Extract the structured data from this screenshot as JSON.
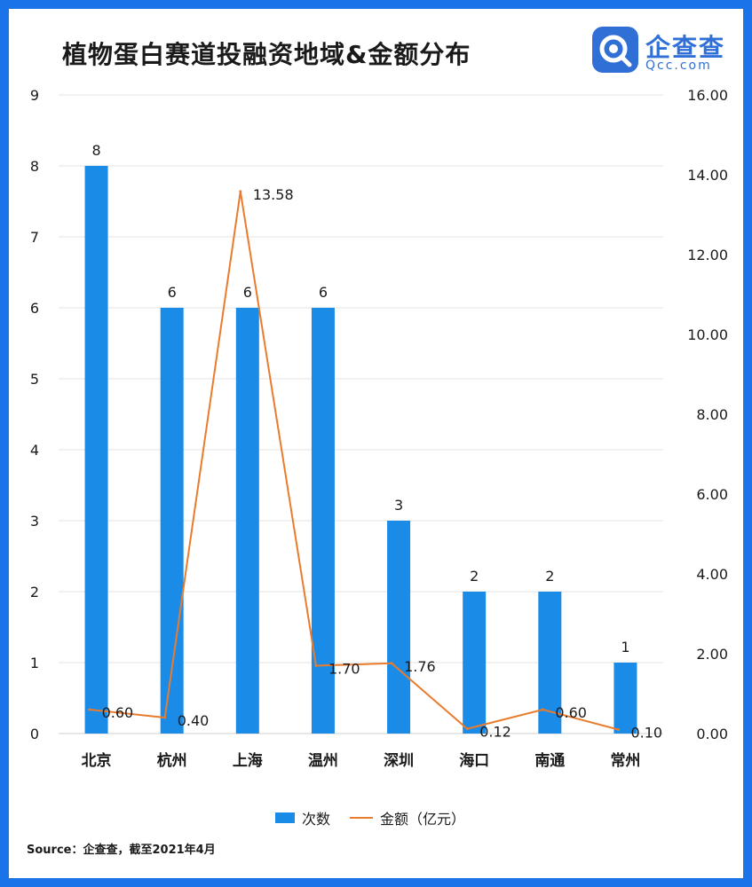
{
  "title": "植物蛋白赛道投融资地域&金额分布",
  "logo": {
    "cn": "企查查",
    "en": "Qcc.com"
  },
  "source": "Source：企查查，截至2021年4月",
  "colors": {
    "background": "#1a73e8",
    "bar": "#1a8ce8",
    "line": "#ea7b2c",
    "grid": "#e3e3e3",
    "text": "#1a1a1a"
  },
  "chart_data": {
    "type": "bar",
    "categories": [
      "北京",
      "杭州",
      "上海",
      "温州",
      "深圳",
      "海口",
      "南通",
      "常州"
    ],
    "series": [
      {
        "name": "次数",
        "type": "bar",
        "axis": "left",
        "values": [
          8,
          6,
          6,
          6,
          3,
          2,
          2,
          1
        ],
        "labels": [
          "8",
          "6",
          "6",
          "6",
          "3",
          "2",
          "2",
          "1"
        ]
      },
      {
        "name": "金额（亿元）",
        "type": "line",
        "axis": "right",
        "values": [
          0.6,
          0.4,
          13.58,
          1.7,
          1.76,
          0.12,
          0.6,
          0.1
        ],
        "labels": [
          "0.60",
          "0.40",
          "13.58",
          "1.70",
          "1.76",
          "0.12",
          "0.60",
          "0.10"
        ]
      }
    ],
    "y_left": {
      "min": 0,
      "max": 9,
      "ticks": [
        "0",
        "1",
        "2",
        "3",
        "4",
        "5",
        "6",
        "7",
        "8",
        "9"
      ]
    },
    "y_right": {
      "min": 0,
      "max": 16,
      "ticks": [
        "0.00",
        "2.00",
        "4.00",
        "6.00",
        "8.00",
        "10.00",
        "12.00",
        "14.00",
        "16.00"
      ]
    },
    "grid": true,
    "legend_position": "bottom"
  }
}
